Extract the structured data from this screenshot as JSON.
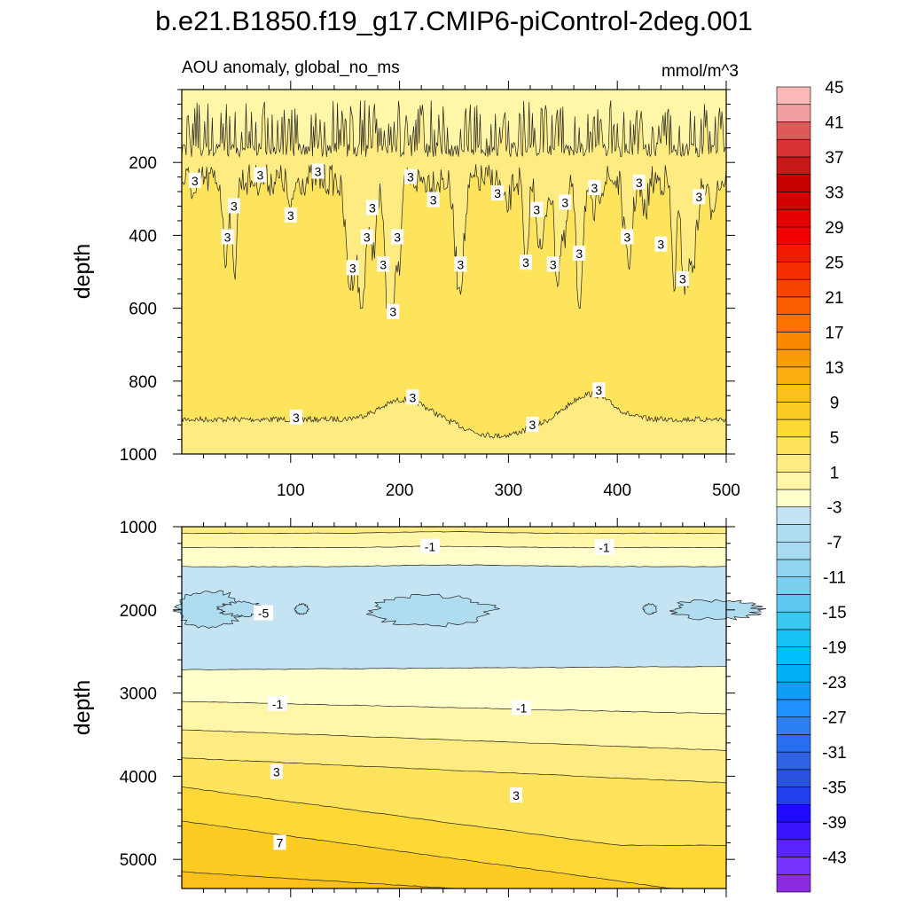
{
  "chart_data": {
    "type": "contour",
    "title": "b.e21.B1850.f19_g17.CMIP6-piControl-2deg.001",
    "panels": [
      {
        "id": "upper",
        "left_label": "AOU anomaly, global_no_ms",
        "right_label": "mmol/m^3",
        "xlabel": "",
        "ylabel": "depth",
        "xlim": [
          0,
          500
        ],
        "ylim": [
          1000,
          0
        ],
        "xticks": [
          100,
          200,
          300,
          400,
          500
        ],
        "yticks": [
          200,
          400,
          600,
          800,
          1000
        ],
        "contour_labels": [
          {
            "text": "3",
            "x": 12,
            "y": 250
          },
          {
            "text": "3",
            "x": 48,
            "y": 320
          },
          {
            "text": "3",
            "x": 42,
            "y": 405
          },
          {
            "text": "3",
            "x": 72,
            "y": 235
          },
          {
            "text": "3",
            "x": 100,
            "y": 345
          },
          {
            "text": "3",
            "x": 125,
            "y": 225
          },
          {
            "text": "3",
            "x": 157,
            "y": 490
          },
          {
            "text": "3",
            "x": 175,
            "y": 325
          },
          {
            "text": "3",
            "x": 170,
            "y": 405
          },
          {
            "text": "3",
            "x": 185,
            "y": 480
          },
          {
            "text": "3",
            "x": 198,
            "y": 405
          },
          {
            "text": "3",
            "x": 194,
            "y": 610
          },
          {
            "text": "3",
            "x": 210,
            "y": 240
          },
          {
            "text": "3",
            "x": 231,
            "y": 303
          },
          {
            "text": "3",
            "x": 256,
            "y": 480
          },
          {
            "text": "3",
            "x": 290,
            "y": 285
          },
          {
            "text": "3",
            "x": 316,
            "y": 475
          },
          {
            "text": "3",
            "x": 326,
            "y": 330
          },
          {
            "text": "3",
            "x": 341,
            "y": 480
          },
          {
            "text": "3",
            "x": 352,
            "y": 310
          },
          {
            "text": "3",
            "x": 365,
            "y": 450
          },
          {
            "text": "3",
            "x": 379,
            "y": 270
          },
          {
            "text": "3",
            "x": 409,
            "y": 405
          },
          {
            "text": "3",
            "x": 420,
            "y": 255
          },
          {
            "text": "3",
            "x": 440,
            "y": 425
          },
          {
            "text": "3",
            "x": 460,
            "y": 520
          },
          {
            "text": "3",
            "x": 475,
            "y": 295
          },
          {
            "text": "3",
            "x": 105,
            "y": 900
          },
          {
            "text": "3",
            "x": 212,
            "y": 845
          },
          {
            "text": "3",
            "x": 322,
            "y": 920
          },
          {
            "text": "3",
            "x": 383,
            "y": 825
          }
        ]
      },
      {
        "id": "lower",
        "ylabel": "depth",
        "xlim": [
          0,
          500
        ],
        "ylim": [
          5350,
          1000
        ],
        "yticks": [
          1000,
          2000,
          3000,
          4000,
          5000
        ],
        "contour_labels": [
          {
            "text": "-1",
            "x": 228,
            "y": 1240
          },
          {
            "text": "-1",
            "x": 388,
            "y": 1250
          },
          {
            "text": "-5",
            "x": 75,
            "y": 2040
          },
          {
            "text": "-1",
            "x": 88,
            "y": 3130
          },
          {
            "text": "-1",
            "x": 312,
            "y": 3180
          },
          {
            "text": "3",
            "x": 87,
            "y": 3950
          },
          {
            "text": "3",
            "x": 307,
            "y": 4230
          },
          {
            "text": "7",
            "x": 90,
            "y": 4800
          }
        ]
      }
    ],
    "colorbar": {
      "levels": [
        -45,
        -43,
        -41,
        -39,
        -37,
        -35,
        -33,
        -31,
        -29,
        -27,
        -25,
        -23,
        -21,
        -19,
        -17,
        -15,
        -13,
        -11,
        -9,
        -7,
        -5,
        -3,
        -1,
        1,
        3,
        5,
        7,
        9,
        11,
        13,
        15,
        17,
        19,
        21,
        23,
        25,
        27,
        29,
        31,
        33,
        35,
        37,
        39,
        41,
        43,
        45
      ],
      "labels": [
        "45",
        "41",
        "37",
        "33",
        "29",
        "25",
        "21",
        "17",
        "13",
        "9",
        "5",
        "1",
        "-3",
        "-7",
        "-11",
        "-15",
        "-19",
        "-23",
        "-27",
        "-31",
        "-35",
        "-39",
        "-43"
      ],
      "colors": [
        "#8a2be2",
        "#7733ff",
        "#5b23ff",
        "#3b14ff",
        "#1f0cff",
        "#2040ee",
        "#2a52df",
        "#3062e6",
        "#2a6ef0",
        "#2d80f2",
        "#1e90ff",
        "#0f9cf5",
        "#00b0f5",
        "#00bfff",
        "#18c2f5",
        "#3ac8f0",
        "#5ec8f2",
        "#7ccfee",
        "#92d3f0",
        "#a6dbf2",
        "#b0dcf0",
        "#c4e4f4",
        "#ffffcc",
        "#fff6a8",
        "#feec82",
        "#fde45c",
        "#fdd836",
        "#fccc22",
        "#fbc01a",
        "#f9ad10",
        "#f89c08",
        "#f88800",
        "#fa7300",
        "#f95f00",
        "#f74400",
        "#f52f00",
        "#f21a00",
        "#f20000",
        "#e40000",
        "#d40000",
        "#c40000",
        "#c81818",
        "#d83434",
        "#e05858",
        "#f0a0a0",
        "#fbb8b8"
      ]
    }
  }
}
